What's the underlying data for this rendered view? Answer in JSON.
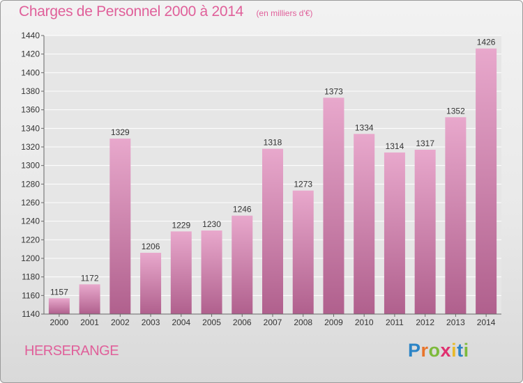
{
  "header": {
    "title": "Charges de Personnel 2000 à 2014",
    "subtitle": "(en milliers d'€)"
  },
  "footer": {
    "location": "HERSERANGE",
    "brand": {
      "letters": [
        "P",
        "r",
        "o",
        "x",
        "i",
        "t",
        "i"
      ],
      "colors": [
        "#2c84c6",
        "#e8742a",
        "#7dba3b",
        "#e0306f",
        "#e8b92a",
        "#2c84c6",
        "#7dba3b"
      ]
    }
  },
  "colors": {
    "accent": "#e0609a",
    "bar_top": "#e8a8cc",
    "bar_bottom": "#b0608d"
  },
  "chart_data": {
    "type": "bar",
    "title": "Charges de Personnel 2000 à 2014",
    "subtitle": "(en milliers d'€)",
    "categories": [
      "2000",
      "2001",
      "2002",
      "2003",
      "2004",
      "2005",
      "2006",
      "2007",
      "2008",
      "2009",
      "2010",
      "2011",
      "2012",
      "2013",
      "2014"
    ],
    "values": [
      1157,
      1172,
      1329,
      1206,
      1229,
      1230,
      1246,
      1318,
      1273,
      1373,
      1334,
      1314,
      1317,
      1352,
      1426
    ],
    "ylim": [
      1140,
      1440
    ],
    "yticks": [
      1140,
      1160,
      1180,
      1200,
      1220,
      1240,
      1260,
      1280,
      1300,
      1320,
      1340,
      1360,
      1380,
      1400,
      1420,
      1440
    ],
    "grid": true,
    "data_labels": true
  }
}
